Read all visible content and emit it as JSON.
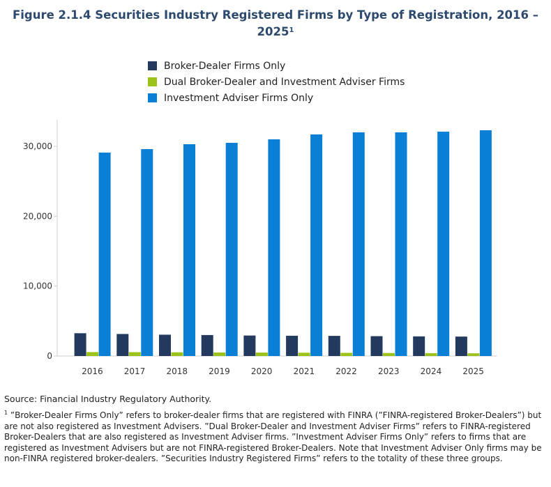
{
  "title": {
    "main": "Figure 2.1.4 Securities Industry Registered Firms by Type of Registration, 2016 – 2025",
    "footnote_marker": "1"
  },
  "legend": [
    {
      "label": "Broker-Dealer Firms Only",
      "color": "#233a5e"
    },
    {
      "label": "Dual Broker-Dealer and Investment Adviser Firms",
      "color": "#9cc31a"
    },
    {
      "label": "Investment Adviser Firms Only",
      "color": "#0a7fd6"
    }
  ],
  "source": "Source: Financial Industry Regulatory Authority.",
  "footnote": {
    "marker": "1",
    "text": " ”Broker-Dealer Firms Only” refers to broker-dealer firms that are registered with FINRA (”FINRA-registered Broker-Dealers”) but are not also registered as Investment Advisers. ”Dual Broker-Dealer and Investment Adviser Firms” refers to FINRA-registered Broker-Dealers that are also registered as Investment Adviser firms. ”Investment Adviser Firms Only” refers to firms that are registered as Investment Advisers but are not FINRA-registered Broker-Dealers. Note that Investment Adviser Only firms may be non-FINRA registered broker-dealers. ”Securities Industry Registered Firms” refers to the totality of these three groups."
  },
  "chart_data": {
    "type": "bar",
    "categories": [
      "2016",
      "2017",
      "2018",
      "2019",
      "2020",
      "2021",
      "2022",
      "2023",
      "2024",
      "2025"
    ],
    "series": [
      {
        "name": "Broker-Dealer Firms Only",
        "color": "#233a5e",
        "values": [
          3260,
          3150,
          3050,
          3000,
          2930,
          2900,
          2880,
          2840,
          2810,
          2780
        ]
      },
      {
        "name": "Dual Broker-Dealer and Investment Adviser Firms",
        "color": "#9cc31a",
        "values": [
          560,
          550,
          530,
          510,
          490,
          470,
          450,
          430,
          410,
          390
        ]
      },
      {
        "name": "Investment Adviser Firms Only",
        "color": "#0a7fd6",
        "values": [
          29100,
          29600,
          30300,
          30500,
          31000,
          31700,
          32000,
          32000,
          32100,
          32300
        ]
      }
    ],
    "yticks": [
      0,
      10000,
      20000,
      30000
    ],
    "ytick_labels": [
      "0",
      "10,000",
      "20,000",
      "30,000"
    ],
    "ylim": [
      0,
      34000
    ],
    "grid": false,
    "legend_position": "top"
  }
}
